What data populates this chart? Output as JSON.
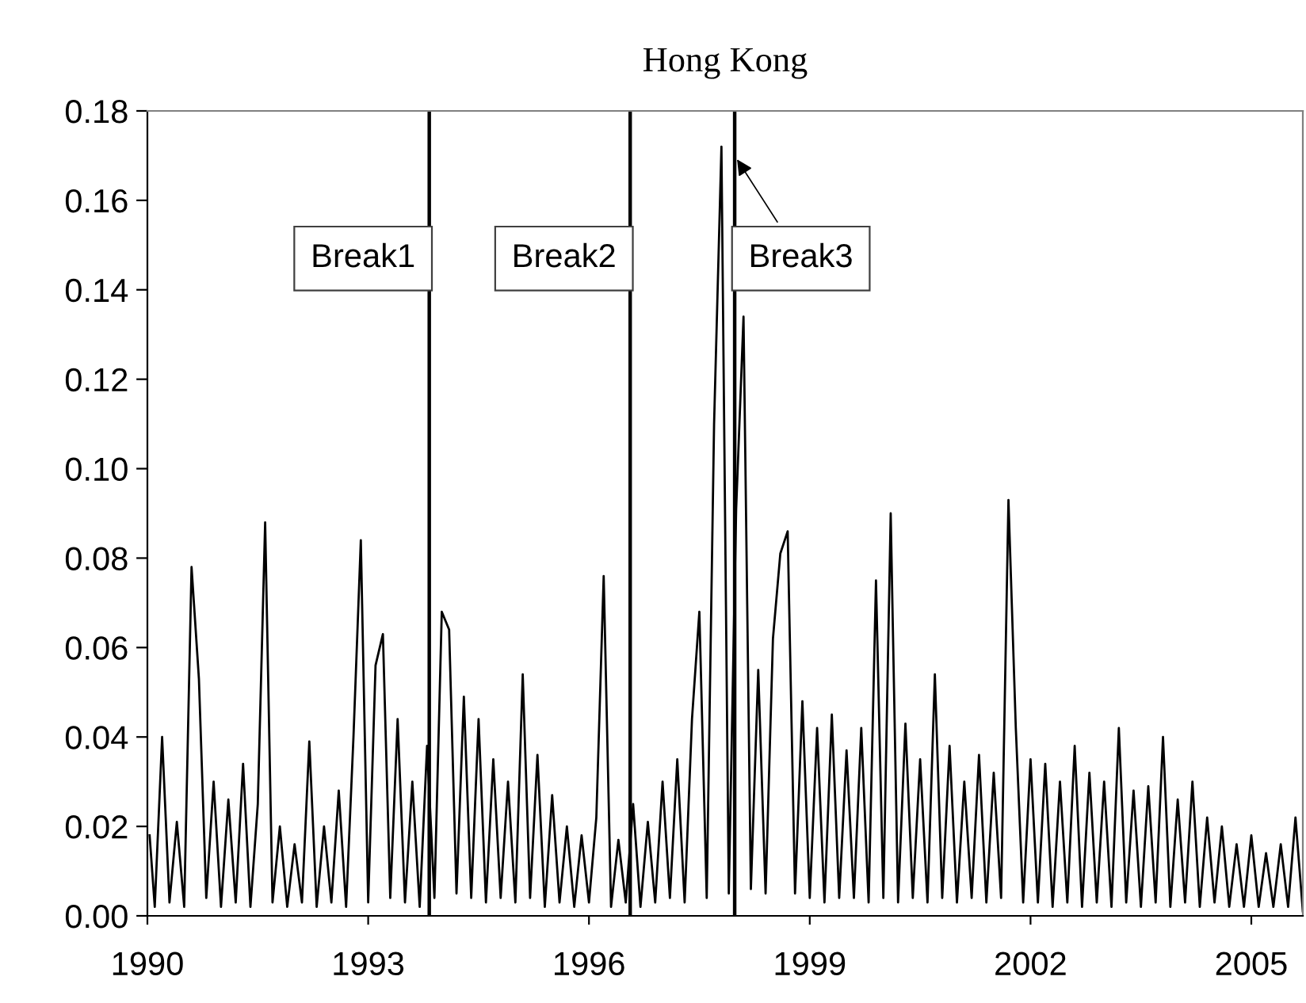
{
  "chart_data": {
    "type": "line",
    "title": "Hong Kong",
    "x": [
      1990.03,
      1990.1,
      1990.2,
      1990.3,
      1990.4,
      1990.5,
      1990.6,
      1990.7,
      1990.8,
      1990.9,
      1991.0,
      1991.1,
      1991.2,
      1991.3,
      1991.4,
      1991.5,
      1991.6,
      1991.7,
      1991.8,
      1991.9,
      1992.0,
      1992.1,
      1992.2,
      1992.3,
      1992.4,
      1992.5,
      1992.6,
      1992.7,
      1992.8,
      1992.9,
      1993.0,
      1993.1,
      1993.2,
      1993.3,
      1993.4,
      1993.5,
      1993.6,
      1993.7,
      1993.8,
      1993.9,
      1994.0,
      1994.1,
      1994.2,
      1994.3,
      1994.4,
      1994.5,
      1994.6,
      1994.7,
      1994.8,
      1994.9,
      1995.0,
      1995.1,
      1995.2,
      1995.3,
      1995.4,
      1995.5,
      1995.6,
      1995.7,
      1995.8,
      1995.9,
      1996.0,
      1996.1,
      1996.2,
      1996.3,
      1996.4,
      1996.5,
      1996.6,
      1996.7,
      1996.8,
      1996.9,
      1997.0,
      1997.1,
      1997.2,
      1997.3,
      1997.4,
      1997.5,
      1997.6,
      1997.7,
      1997.8,
      1997.9,
      1998.0,
      1998.1,
      1998.2,
      1998.3,
      1998.4,
      1998.5,
      1998.6,
      1998.7,
      1998.8,
      1998.9,
      1999.0,
      1999.1,
      1999.2,
      1999.3,
      1999.4,
      1999.5,
      1999.6,
      1999.7,
      1999.8,
      1999.9,
      2000.0,
      2000.1,
      2000.2,
      2000.3,
      2000.4,
      2000.5,
      2000.6,
      2000.7,
      2000.8,
      2000.9,
      2001.0,
      2001.1,
      2001.2,
      2001.3,
      2001.4,
      2001.5,
      2001.6,
      2001.7,
      2001.8,
      2001.9,
      2002.0,
      2002.1,
      2002.2,
      2002.3,
      2002.4,
      2002.5,
      2002.6,
      2002.7,
      2002.8,
      2002.9,
      2003.0,
      2003.1,
      2003.2,
      2003.3,
      2003.4,
      2003.5,
      2003.6,
      2003.7,
      2003.8,
      2003.9,
      2004.0,
      2004.1,
      2004.2,
      2004.3,
      2004.4,
      2004.5,
      2004.6,
      2004.7,
      2004.8,
      2004.9,
      2005.0,
      2005.1,
      2005.2,
      2005.3,
      2005.4,
      2005.5,
      2005.6,
      2005.7
    ],
    "series": [
      {
        "color": "#000000",
        "values": [
          0.018,
          0.002,
          0.04,
          0.003,
          0.021,
          0.002,
          0.078,
          0.053,
          0.004,
          0.03,
          0.002,
          0.026,
          0.003,
          0.034,
          0.002,
          0.025,
          0.088,
          0.003,
          0.02,
          0.002,
          0.016,
          0.003,
          0.039,
          0.002,
          0.02,
          0.003,
          0.028,
          0.002,
          0.04,
          0.084,
          0.003,
          0.056,
          0.063,
          0.004,
          0.044,
          0.003,
          0.03,
          0.002,
          0.038,
          0.004,
          0.068,
          0.064,
          0.005,
          0.049,
          0.004,
          0.044,
          0.003,
          0.035,
          0.004,
          0.03,
          0.003,
          0.054,
          0.004,
          0.036,
          0.002,
          0.027,
          0.003,
          0.02,
          0.002,
          0.018,
          0.003,
          0.022,
          0.076,
          0.002,
          0.017,
          0.003,
          0.025,
          0.002,
          0.021,
          0.003,
          0.03,
          0.004,
          0.035,
          0.003,
          0.044,
          0.068,
          0.004,
          0.11,
          0.172,
          0.005,
          0.091,
          0.134,
          0.006,
          0.055,
          0.005,
          0.062,
          0.081,
          0.086,
          0.005,
          0.048,
          0.004,
          0.042,
          0.003,
          0.045,
          0.004,
          0.037,
          0.004,
          0.042,
          0.003,
          0.075,
          0.004,
          0.09,
          0.003,
          0.043,
          0.004,
          0.035,
          0.003,
          0.054,
          0.004,
          0.038,
          0.003,
          0.03,
          0.004,
          0.036,
          0.003,
          0.032,
          0.004,
          0.093,
          0.042,
          0.003,
          0.035,
          0.003,
          0.034,
          0.002,
          0.03,
          0.003,
          0.038,
          0.002,
          0.032,
          0.003,
          0.03,
          0.002,
          0.042,
          0.003,
          0.028,
          0.002,
          0.029,
          0.003,
          0.04,
          0.002,
          0.026,
          0.003,
          0.03,
          0.002,
          0.022,
          0.003,
          0.02,
          0.002,
          0.016,
          0.002,
          0.018,
          0.002,
          0.014,
          0.002,
          0.016,
          0.002,
          0.022,
          0.001
        ]
      }
    ],
    "xlim": [
      1990,
      2005.7
    ],
    "xticks": [
      1990,
      1993,
      1996,
      1999,
      2002,
      2005
    ],
    "ylim": [
      0,
      0.18
    ],
    "yticks": [
      {
        "value": 0,
        "label": "0.00"
      },
      {
        "value": 0.02,
        "label": "0.02"
      },
      {
        "value": 0.04,
        "label": "0.04"
      },
      {
        "value": 0.06,
        "label": "0.06"
      },
      {
        "value": 0.08,
        "label": "0.08"
      },
      {
        "value": 0.1,
        "label": "0.10"
      },
      {
        "value": 0.12,
        "label": "0.12"
      },
      {
        "value": 0.14,
        "label": "0.14"
      },
      {
        "value": 0.16,
        "label": "0.16"
      },
      {
        "value": 0.18,
        "label": "0.18"
      }
    ],
    "ref_lines": [
      {
        "axis": "x",
        "value": 1993.83,
        "label": "Break1",
        "color": "#000000"
      },
      {
        "axis": "x",
        "value": 1996.56,
        "label": "Break2",
        "color": "#000000"
      },
      {
        "axis": "x",
        "value": 1997.98,
        "label": "Break3",
        "color": "#000000"
      }
    ],
    "grid": false,
    "marker": "none",
    "line_style": "solid"
  }
}
